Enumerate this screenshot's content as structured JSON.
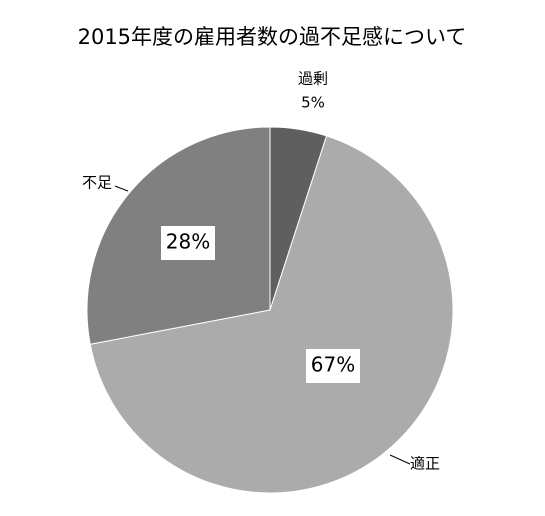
{
  "chart_data": {
    "type": "pie",
    "title": "2015年度の雇用者数の過不足感について",
    "categories": [
      "過剰",
      "適正",
      "不足"
    ],
    "values": [
      5,
      67,
      28
    ],
    "value_labels": [
      "5%",
      "67%",
      "28%"
    ],
    "colors": [
      "#5f5f5f",
      "#ababab",
      "#808080"
    ]
  }
}
